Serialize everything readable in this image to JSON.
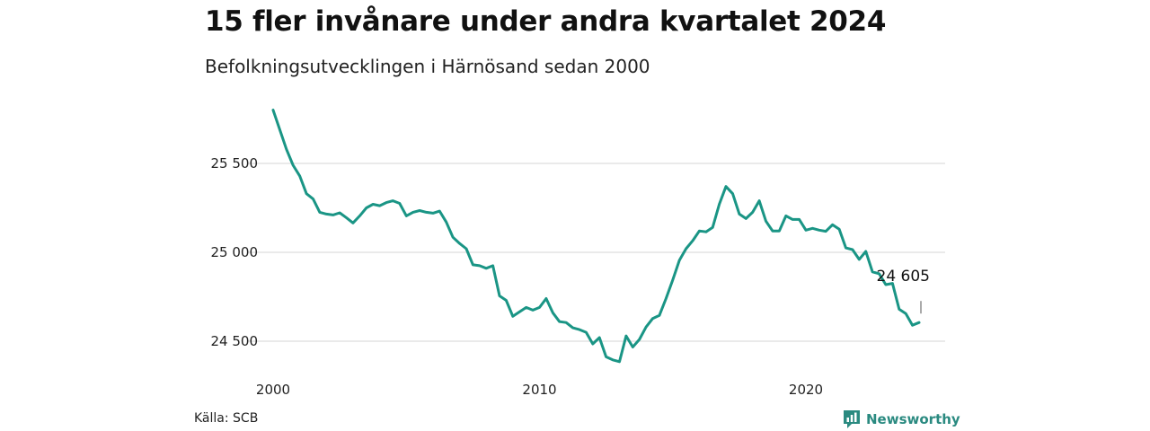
{
  "chart_data": {
    "type": "line",
    "title": "15 fler invånare under andra kvartalet 2024",
    "subtitle": "Befolkningsutvecklingen i Härnösand sedan 2000",
    "source": "Källa: SCB",
    "brand": "Newsworthy",
    "line_color": "#1a9585",
    "grid": true,
    "xlim": [
      2000,
      2024.5
    ],
    "ylim": [
      24450,
      25850
    ],
    "y_ticks": [
      {
        "value": 24500,
        "label": "24 500"
      },
      {
        "value": 25000,
        "label": "25 000"
      },
      {
        "value": 25500,
        "label": "25 500"
      }
    ],
    "x_ticks": [
      {
        "value": 2000,
        "label": "2000"
      },
      {
        "value": 2010,
        "label": "2010"
      },
      {
        "value": 2020,
        "label": "2020"
      }
    ],
    "annotation": {
      "x": 2024.25,
      "y": 24605,
      "label": "24 605"
    },
    "series": [
      {
        "x": [
          2000.0,
          2000.25,
          2000.5,
          2000.75,
          2001.0,
          2001.25,
          2001.5,
          2001.75,
          2002.0,
          2002.25,
          2002.5,
          2002.75,
          2003.0,
          2003.25,
          2003.5,
          2003.75,
          2004.0,
          2004.25,
          2004.5,
          2004.75,
          2005.0,
          2005.25,
          2005.5,
          2005.75,
          2006.0,
          2006.25,
          2006.5,
          2006.75,
          2007.0,
          2007.25,
          2007.5,
          2007.75,
          2008.0,
          2008.25,
          2008.5,
          2008.75,
          2009.0,
          2009.25,
          2009.5,
          2009.75,
          2010.0,
          2010.25,
          2010.5,
          2010.75,
          2011.0,
          2011.25,
          2011.5,
          2011.75,
          2012.0,
          2012.25,
          2012.5,
          2012.75,
          2013.0,
          2013.25,
          2013.5,
          2013.75,
          2014.0,
          2014.25,
          2014.5,
          2014.75,
          2015.0,
          2015.25,
          2015.5,
          2015.75,
          2016.0,
          2016.25,
          2016.5,
          2016.75,
          2017.0,
          2017.25,
          2017.5,
          2017.75,
          2018.0,
          2018.25,
          2018.5,
          2018.75,
          2019.0,
          2019.25,
          2019.5,
          2019.75,
          2020.0,
          2020.25,
          2020.5,
          2020.75,
          2021.0,
          2021.25,
          2021.5,
          2021.75,
          2022.0,
          2022.25,
          2022.5,
          2022.75,
          2023.0,
          2023.25,
          2023.5,
          2023.75,
          2024.0,
          2024.25
        ],
        "y": [
          25800,
          25690,
          25580,
          25490,
          25430,
          25330,
          25300,
          25225,
          25215,
          25210,
          25222,
          25195,
          25165,
          25205,
          25250,
          25270,
          25262,
          25280,
          25290,
          25275,
          25205,
          25225,
          25235,
          25225,
          25220,
          25232,
          25170,
          25085,
          25050,
          25020,
          24930,
          24925,
          24910,
          24925,
          24755,
          24730,
          24640,
          24665,
          24690,
          24675,
          24690,
          24740,
          24660,
          24610,
          24605,
          24575,
          24565,
          24550,
          24485,
          24520,
          24412,
          24395,
          24385,
          24530,
          24467,
          24510,
          24580,
          24628,
          24645,
          24740,
          24845,
          24955,
          25020,
          25065,
          25120,
          25115,
          25140,
          25270,
          25370,
          25330,
          25215,
          25190,
          25225,
          25290,
          25175,
          25120,
          25120,
          25205,
          25185,
          25185,
          25125,
          25135,
          25125,
          25118,
          25155,
          25130,
          25025,
          25015,
          24960,
          25005,
          24890,
          24880,
          24818,
          24825,
          24680,
          24655,
          24590,
          24605
        ]
      }
    ]
  }
}
